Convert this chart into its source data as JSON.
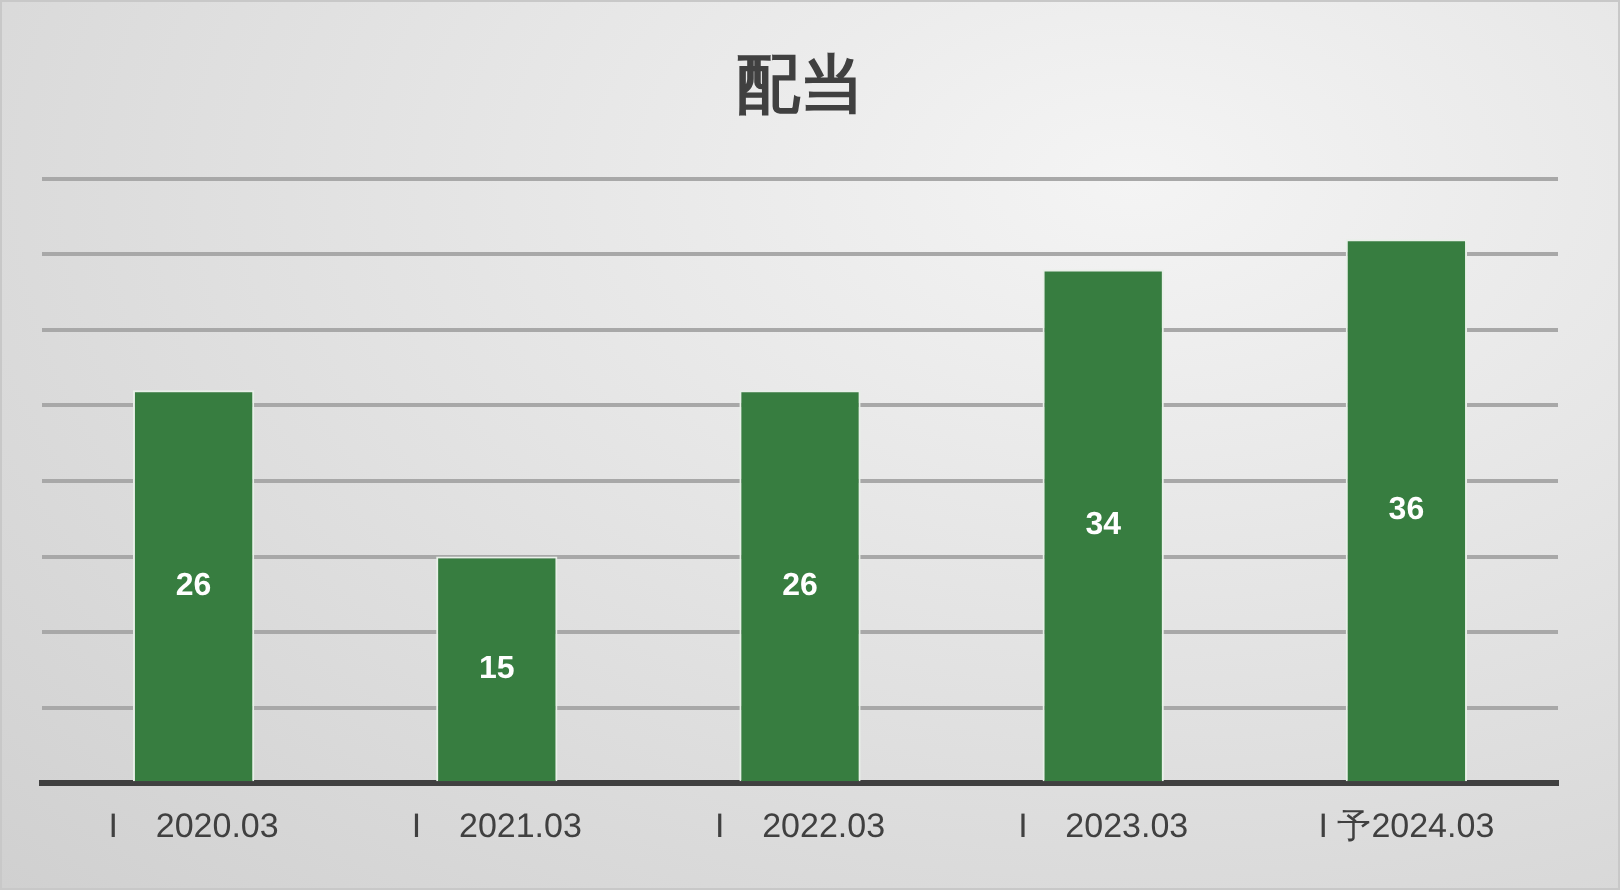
{
  "chart_data": {
    "type": "bar",
    "title": "配当",
    "categories": [
      "I    2020.03",
      "I    2021.03",
      "I    2022.03",
      "I    2023.03",
      "I 予2024.03"
    ],
    "values": [
      26,
      15,
      26,
      34,
      36
    ],
    "color": "#377d40",
    "ylim": [
      0,
      40
    ],
    "yticks": [
      {
        "value": 0,
        "label": null
      },
      {
        "value": 5,
        "label": null
      },
      {
        "value": 10,
        "label": null
      },
      {
        "value": 15,
        "label": null
      },
      {
        "value": 20,
        "label": null
      },
      {
        "value": 25,
        "label": null
      },
      {
        "value": 30,
        "label": null
      },
      {
        "value": 35,
        "label": null
      },
      {
        "value": 40,
        "label": null
      }
    ],
    "grid": "y",
    "data_labels": true,
    "legend": false,
    "tick_labels": "x"
  }
}
